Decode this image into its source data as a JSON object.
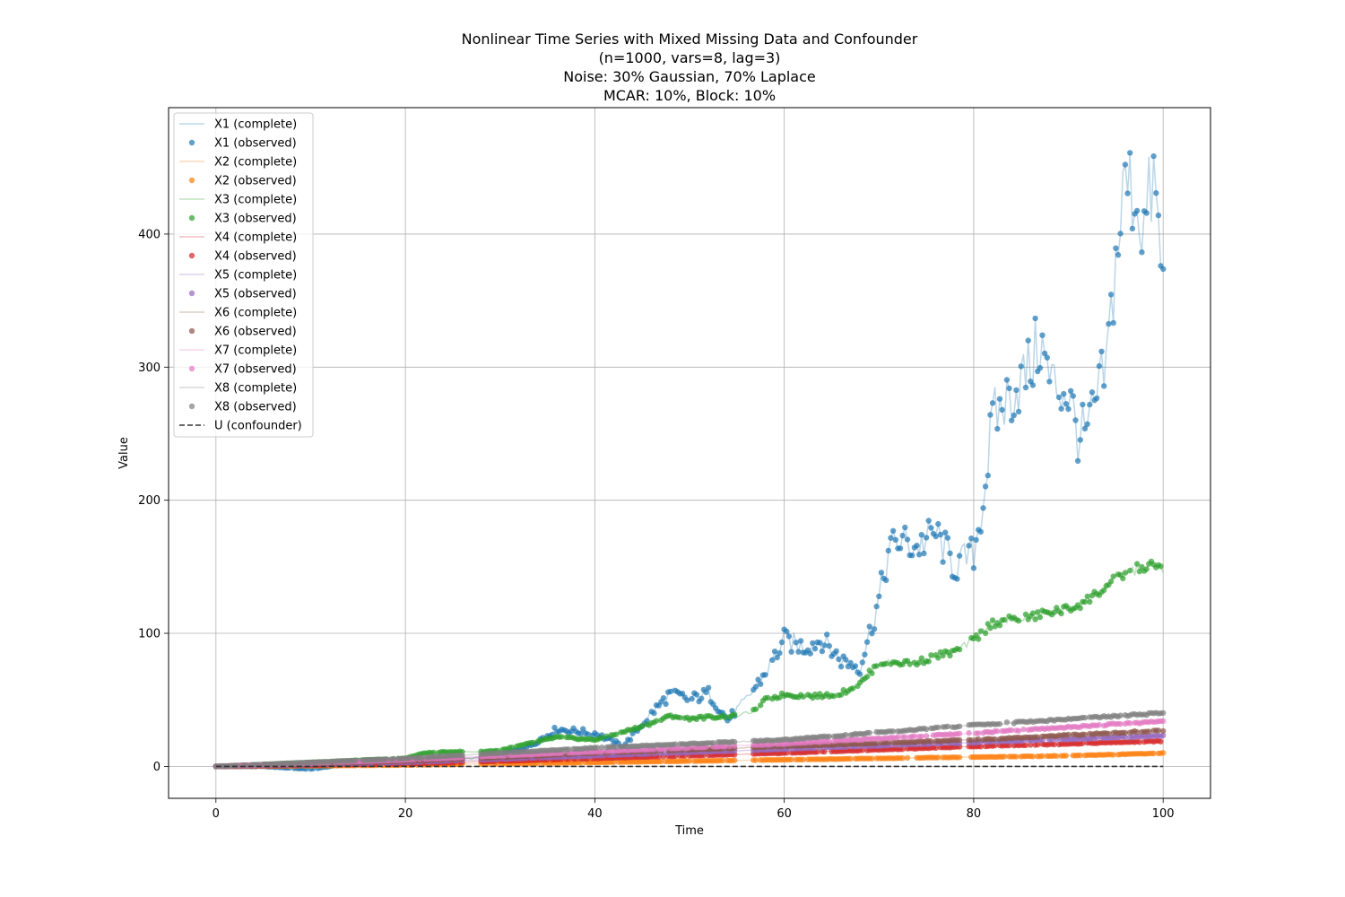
{
  "chart_data": {
    "type": "line",
    "title": [
      "Nonlinear Time Series with Mixed Missing Data and Confounder",
      "(n=1000, vars=8, lag=3)",
      "Noise: 30% Gaussian, 70% Laplace",
      "MCAR: 10%, Block: 10%"
    ],
    "xlabel": "Time",
    "ylabel": "Value",
    "xlim": [
      -5,
      105
    ],
    "ylim": [
      -24,
      495
    ],
    "xticks": [
      0,
      20,
      40,
      60,
      80,
      100
    ],
    "yticks": [
      0,
      100,
      200,
      300,
      400
    ],
    "grid": true,
    "legend_position": "upper-left",
    "legend": [
      {
        "label": "X1 (complete)",
        "kind": "line",
        "color": "#1f77b4"
      },
      {
        "label": "X1 (observed)",
        "kind": "dot",
        "color": "#1f77b4"
      },
      {
        "label": "X2 (complete)",
        "kind": "line",
        "color": "#ff7f0e"
      },
      {
        "label": "X2 (observed)",
        "kind": "dot",
        "color": "#ff7f0e"
      },
      {
        "label": "X3 (complete)",
        "kind": "line",
        "color": "#2ca02c"
      },
      {
        "label": "X3 (observed)",
        "kind": "dot",
        "color": "#2ca02c"
      },
      {
        "label": "X4 (complete)",
        "kind": "line",
        "color": "#d62728"
      },
      {
        "label": "X4 (observed)",
        "kind": "dot",
        "color": "#d62728"
      },
      {
        "label": "X5 (complete)",
        "kind": "line",
        "color": "#9467bd"
      },
      {
        "label": "X5 (observed)",
        "kind": "dot",
        "color": "#9467bd"
      },
      {
        "label": "X6 (complete)",
        "kind": "line",
        "color": "#8c564b"
      },
      {
        "label": "X6 (observed)",
        "kind": "dot",
        "color": "#8c564b"
      },
      {
        "label": "X7 (complete)",
        "kind": "line",
        "color": "#e377c2"
      },
      {
        "label": "X7 (observed)",
        "kind": "dot",
        "color": "#e377c2"
      },
      {
        "label": "X8 (complete)",
        "kind": "line",
        "color": "#7f7f7f"
      },
      {
        "label": "X8 (observed)",
        "kind": "dot",
        "color": "#7f7f7f"
      },
      {
        "label": "U (confounder)",
        "kind": "dashed",
        "color": "#333333"
      }
    ],
    "series": [
      {
        "name": "X1",
        "color": "#1f77b4",
        "x": [
          0,
          5,
          10,
          15,
          20,
          25,
          30,
          33,
          36,
          40,
          43,
          46,
          48,
          50,
          52,
          54,
          56,
          58,
          60,
          62,
          64,
          66,
          68,
          70,
          71,
          72,
          74,
          76,
          78,
          80,
          81,
          82,
          84,
          86,
          87,
          88,
          90,
          91,
          92,
          94,
          95,
          96,
          97,
          98,
          99,
          100
        ],
        "y": [
          0,
          0,
          -2,
          3,
          2,
          5,
          8,
          15,
          28,
          25,
          15,
          40,
          55,
          50,
          55,
          35,
          50,
          70,
          95,
          90,
          95,
          80,
          75,
          125,
          160,
          170,
          165,
          175,
          150,
          160,
          200,
          260,
          280,
          300,
          320,
          290,
          280,
          250,
          250,
          300,
          380,
          440,
          430,
          405,
          440,
          360
        ]
      },
      {
        "name": "X2",
        "color": "#ff7f0e",
        "x": [
          0,
          10,
          20,
          30,
          40,
          50,
          60,
          70,
          80,
          90,
          100
        ],
        "y": [
          0,
          0.5,
          1,
          2,
          3,
          4,
          5,
          6,
          7,
          8,
          10
        ]
      },
      {
        "name": "X3",
        "color": "#2ca02c",
        "x": [
          0,
          10,
          20,
          22,
          25,
          28,
          30,
          33,
          36,
          40,
          42,
          45,
          47,
          48,
          50,
          52,
          55,
          57,
          58,
          60,
          62,
          64,
          66,
          68,
          70,
          72,
          74,
          76,
          78,
          80,
          82,
          84,
          86,
          88,
          90,
          92,
          94,
          96,
          98,
          100
        ],
        "y": [
          0,
          3,
          6,
          10,
          11,
          11,
          12,
          17,
          22,
          20,
          24,
          30,
          35,
          38,
          36,
          37,
          38,
          42,
          50,
          54,
          53,
          53,
          55,
          62,
          78,
          78,
          78,
          83,
          86,
          95,
          108,
          110,
          112,
          116,
          118,
          125,
          135,
          145,
          150,
          150
        ]
      },
      {
        "name": "X4",
        "color": "#d62728",
        "x": [
          0,
          20,
          40,
          60,
          80,
          100
        ],
        "y": [
          0,
          2,
          6,
          10,
          15,
          19
        ]
      },
      {
        "name": "X5",
        "color": "#9467bd",
        "x": [
          0,
          20,
          40,
          60,
          80,
          100
        ],
        "y": [
          0,
          3,
          8,
          13,
          18,
          23
        ]
      },
      {
        "name": "X6",
        "color": "#8c564b",
        "x": [
          0,
          20,
          40,
          60,
          80,
          100
        ],
        "y": [
          0,
          4,
          10,
          15,
          20,
          27
        ]
      },
      {
        "name": "X7",
        "color": "#e377c2",
        "x": [
          0,
          20,
          40,
          60,
          80,
          100
        ],
        "y": [
          0,
          5,
          11,
          17,
          25,
          34
        ]
      },
      {
        "name": "X8",
        "color": "#7f7f7f",
        "x": [
          0,
          20,
          40,
          60,
          80,
          100
        ],
        "y": [
          0,
          6,
          14,
          20,
          31,
          40
        ]
      },
      {
        "name": "U",
        "color": "#333333",
        "x": [
          0,
          100
        ],
        "y": [
          0,
          0
        ]
      }
    ]
  }
}
